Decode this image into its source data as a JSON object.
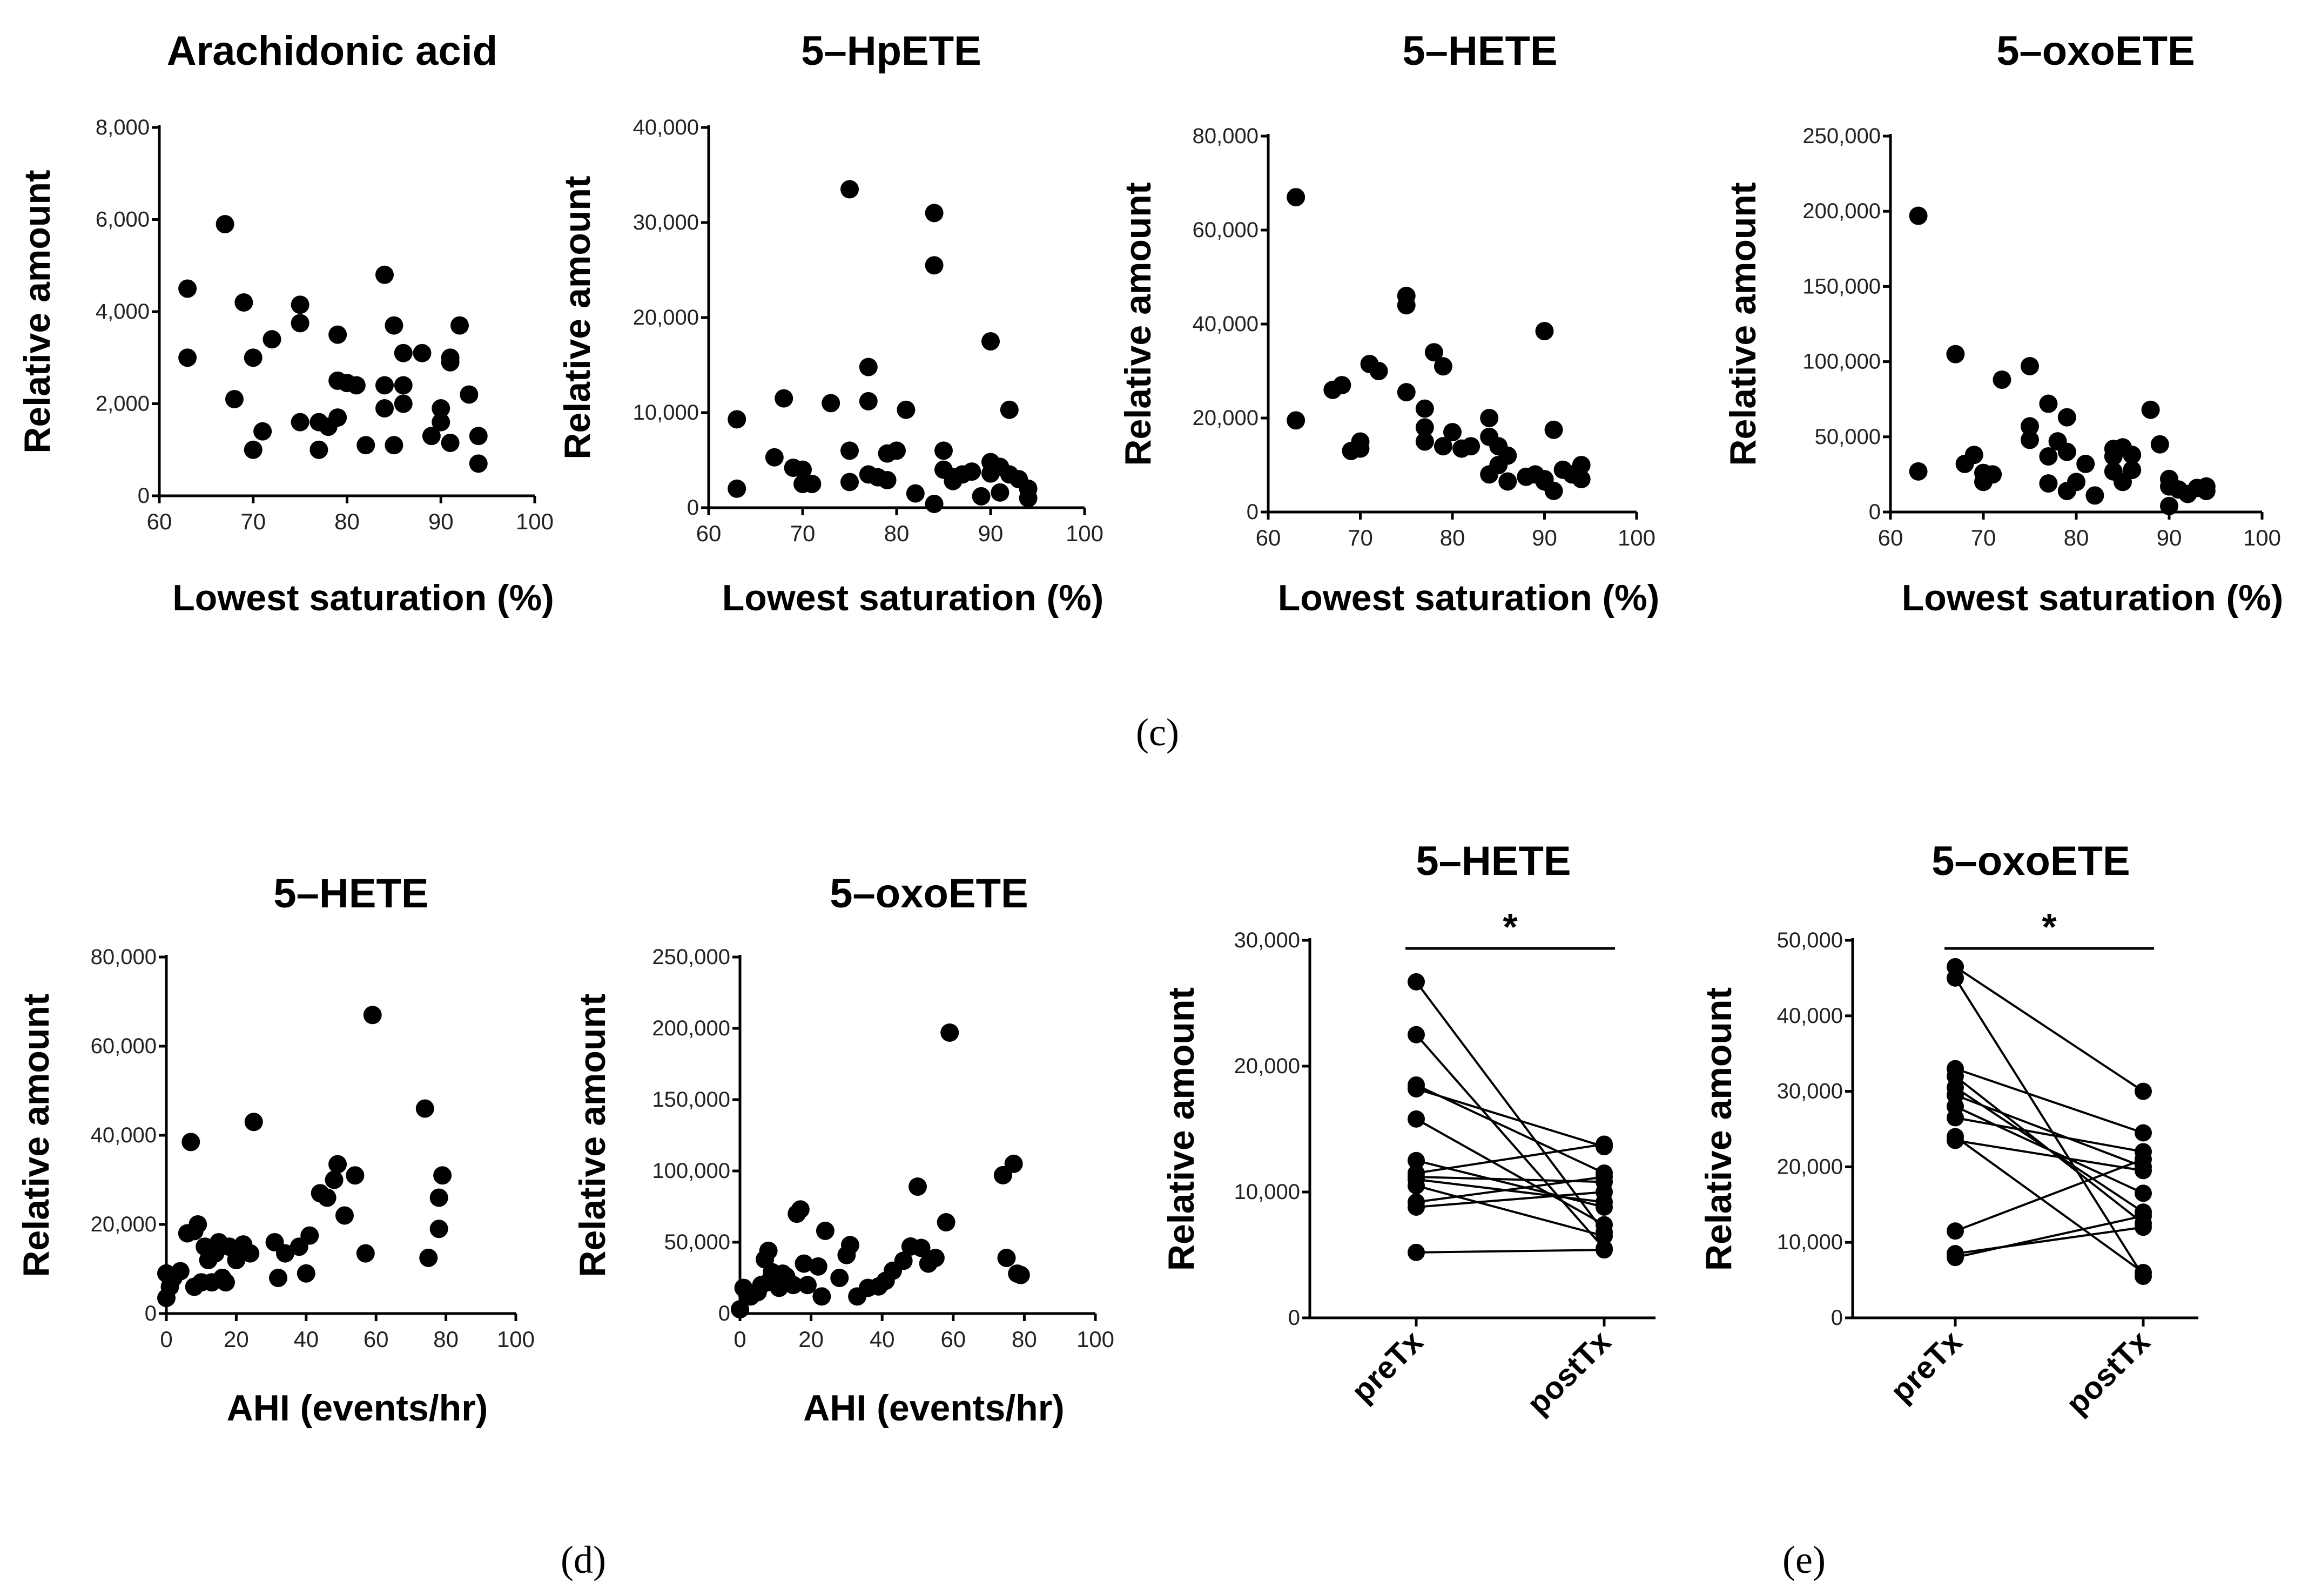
{
  "panel_labels": {
    "c": "(c)",
    "d": "(d)",
    "e": "(e)"
  },
  "significance_marker": "*",
  "colors": {
    "points": "#000000",
    "axes": "#000000",
    "background": "#ffffff"
  },
  "chart_data": [
    {
      "id": "c1",
      "type": "scatter",
      "title": "Arachidonic acid",
      "xlabel": "Lowest saturation (%)",
      "ylabel": "Relative amount",
      "xlim": [
        60,
        100
      ],
      "ylim": [
        0,
        8000
      ],
      "xticks": [
        60,
        70,
        80,
        90,
        100
      ],
      "xtick_labels": [
        "60",
        "70",
        "80",
        "90",
        "100"
      ],
      "yticks": [
        0,
        2000,
        4000,
        6000,
        8000
      ],
      "ytick_labels": [
        "0",
        "2,000",
        "4,000",
        "6,000",
        "8,000"
      ],
      "points": [
        [
          63,
          4500
        ],
        [
          63,
          3000
        ],
        [
          67,
          5900
        ],
        [
          68,
          2100
        ],
        [
          69,
          4200
        ],
        [
          70,
          3000
        ],
        [
          70,
          1000
        ],
        [
          71,
          1400
        ],
        [
          72,
          3400
        ],
        [
          75,
          4150
        ],
        [
          75,
          3750
        ],
        [
          75,
          1600
        ],
        [
          77,
          1600
        ],
        [
          77,
          1000
        ],
        [
          78,
          1500
        ],
        [
          79,
          3500
        ],
        [
          79,
          2500
        ],
        [
          79,
          1700
        ],
        [
          80,
          2450
        ],
        [
          81,
          2400
        ],
        [
          82,
          1100
        ],
        [
          84,
          4800
        ],
        [
          84,
          2400
        ],
        [
          84,
          1900
        ],
        [
          85,
          3700
        ],
        [
          85,
          1100
        ],
        [
          86,
          2400
        ],
        [
          86,
          2000
        ],
        [
          86,
          3100
        ],
        [
          88,
          3100
        ],
        [
          89,
          1300
        ],
        [
          90,
          1900
        ],
        [
          90,
          1600
        ],
        [
          91,
          3000
        ],
        [
          91,
          2900
        ],
        [
          91,
          1150
        ],
        [
          92,
          3700
        ],
        [
          93,
          2200
        ],
        [
          94,
          1300
        ],
        [
          94,
          700
        ]
      ]
    },
    {
      "id": "c2",
      "type": "scatter",
      "title": "5–HpETE",
      "xlabel": "Lowest saturation (%)",
      "ylabel": "Relative amount",
      "xlim": [
        60,
        100
      ],
      "ylim": [
        0,
        40000
      ],
      "xticks": [
        60,
        70,
        80,
        90,
        100
      ],
      "xtick_labels": [
        "60",
        "70",
        "80",
        "90",
        "100"
      ],
      "yticks": [
        0,
        10000,
        20000,
        30000,
        40000
      ],
      "ytick_labels": [
        "0",
        "10,000",
        "20,000",
        "30,000",
        "40,000"
      ],
      "points": [
        [
          63,
          9300
        ],
        [
          63,
          2000
        ],
        [
          67,
          5300
        ],
        [
          68,
          11500
        ],
        [
          69,
          4200
        ],
        [
          70,
          4000
        ],
        [
          70,
          2500
        ],
        [
          71,
          2500
        ],
        [
          73,
          11000
        ],
        [
          75,
          33500
        ],
        [
          75,
          6000
        ],
        [
          75,
          2700
        ],
        [
          77,
          14800
        ],
        [
          77,
          11200
        ],
        [
          77,
          3500
        ],
        [
          78,
          3200
        ],
        [
          79,
          5700
        ],
        [
          79,
          2900
        ],
        [
          80,
          6000
        ],
        [
          81,
          10300
        ],
        [
          82,
          1500
        ],
        [
          84,
          31000
        ],
        [
          84,
          25500
        ],
        [
          84,
          400
        ],
        [
          85,
          6000
        ],
        [
          85,
          4000
        ],
        [
          86,
          2800
        ],
        [
          86,
          3200
        ],
        [
          87,
          3500
        ],
        [
          88,
          3800
        ],
        [
          89,
          1200
        ],
        [
          90,
          17500
        ],
        [
          90,
          4800
        ],
        [
          90,
          3600
        ],
        [
          91,
          4300
        ],
        [
          91,
          1600
        ],
        [
          92,
          10300
        ],
        [
          92,
          3500
        ],
        [
          93,
          3000
        ],
        [
          94,
          2000
        ],
        [
          94,
          1000
        ]
      ]
    },
    {
      "id": "c3",
      "type": "scatter",
      "title": "5–HETE",
      "xlabel": "Lowest saturation (%)",
      "ylabel": "Relative amount",
      "xlim": [
        60,
        100
      ],
      "ylim": [
        0,
        80000
      ],
      "xticks": [
        60,
        70,
        80,
        90,
        100
      ],
      "xtick_labels": [
        "60",
        "70",
        "80",
        "90",
        "100"
      ],
      "yticks": [
        0,
        20000,
        40000,
        60000,
        80000
      ],
      "ytick_labels": [
        "0",
        "20,000",
        "40,000",
        "60,000",
        "80,000"
      ],
      "points": [
        [
          63,
          67000
        ],
        [
          63,
          19500
        ],
        [
          67,
          26000
        ],
        [
          68,
          27000
        ],
        [
          69,
          13000
        ],
        [
          70,
          15000
        ],
        [
          70,
          13500
        ],
        [
          71,
          31500
        ],
        [
          72,
          30000
        ],
        [
          75,
          46000
        ],
        [
          75,
          44000
        ],
        [
          75,
          25500
        ],
        [
          77,
          22000
        ],
        [
          77,
          18000
        ],
        [
          77,
          15000
        ],
        [
          78,
          34000
        ],
        [
          79,
          31000
        ],
        [
          79,
          14000
        ],
        [
          80,
          17000
        ],
        [
          81,
          13500
        ],
        [
          82,
          14000
        ],
        [
          84,
          20000
        ],
        [
          84,
          16000
        ],
        [
          84,
          8000
        ],
        [
          85,
          14000
        ],
        [
          85,
          10000
        ],
        [
          86,
          12000
        ],
        [
          86,
          6500
        ],
        [
          88,
          7500
        ],
        [
          89,
          8000
        ],
        [
          90,
          38500
        ],
        [
          90,
          7000
        ],
        [
          90,
          6500
        ],
        [
          91,
          17500
        ],
        [
          91,
          4500
        ],
        [
          92,
          9000
        ],
        [
          93,
          8000
        ],
        [
          94,
          7000
        ],
        [
          94,
          10000
        ]
      ]
    },
    {
      "id": "c4",
      "type": "scatter",
      "title": "5–oxoETE",
      "xlabel": "Lowest saturation (%)",
      "ylabel": "Relative amount",
      "xlim": [
        60,
        100
      ],
      "ylim": [
        0,
        250000
      ],
      "xticks": [
        60,
        70,
        80,
        90,
        100
      ],
      "xtick_labels": [
        "60",
        "70",
        "80",
        "90",
        "100"
      ],
      "yticks": [
        0,
        50000,
        100000,
        150000,
        200000,
        250000
      ],
      "ytick_labels": [
        "0",
        "50,000",
        "100,000",
        "150,000",
        "200,000",
        "250,000"
      ],
      "points": [
        [
          63,
          197000
        ],
        [
          63,
          27000
        ],
        [
          67,
          105000
        ],
        [
          68,
          32000
        ],
        [
          69,
          38000
        ],
        [
          70,
          20000
        ],
        [
          70,
          26000
        ],
        [
          71,
          25000
        ],
        [
          72,
          88000
        ],
        [
          75,
          97000
        ],
        [
          75,
          57000
        ],
        [
          75,
          48000
        ],
        [
          77,
          72000
        ],
        [
          77,
          37000
        ],
        [
          77,
          19000
        ],
        [
          78,
          47000
        ],
        [
          79,
          63000
        ],
        [
          79,
          40000
        ],
        [
          79,
          14000
        ],
        [
          80,
          20000
        ],
        [
          81,
          32000
        ],
        [
          82,
          11000
        ],
        [
          84,
          42000
        ],
        [
          84,
          37000
        ],
        [
          84,
          27000
        ],
        [
          85,
          20000
        ],
        [
          85,
          43000
        ],
        [
          86,
          28000
        ],
        [
          86,
          38000
        ],
        [
          88,
          68000
        ],
        [
          89,
          45000
        ],
        [
          90,
          22000
        ],
        [
          90,
          17000
        ],
        [
          90,
          4000
        ],
        [
          91,
          15000
        ],
        [
          92,
          12000
        ],
        [
          93,
          16000
        ],
        [
          94,
          14000
        ],
        [
          94,
          17000
        ]
      ]
    },
    {
      "id": "d1",
      "type": "scatter",
      "title": "5–HETE",
      "xlabel": "AHI (events/hr)",
      "ylabel": "Relative amount",
      "xlim": [
        0,
        100
      ],
      "ylim": [
        0,
        80000
      ],
      "xticks": [
        0,
        20,
        40,
        60,
        80,
        100
      ],
      "xtick_labels": [
        "0",
        "20",
        "40",
        "60",
        "80",
        "100"
      ],
      "yticks": [
        0,
        20000,
        40000,
        60000,
        80000
      ],
      "ytick_labels": [
        "0",
        "20,000",
        "40,000",
        "60,000",
        "80,000"
      ],
      "points": [
        [
          0,
          9000
        ],
        [
          0,
          3500
        ],
        [
          1,
          6000
        ],
        [
          2,
          8000
        ],
        [
          4,
          9500
        ],
        [
          6,
          18000
        ],
        [
          7,
          38500
        ],
        [
          8,
          6000
        ],
        [
          8,
          18500
        ],
        [
          9,
          20000
        ],
        [
          10,
          7000
        ],
        [
          11,
          15000
        ],
        [
          12,
          12000
        ],
        [
          13,
          7000
        ],
        [
          14,
          13500
        ],
        [
          15,
          16000
        ],
        [
          16,
          8000
        ],
        [
          17,
          7000
        ],
        [
          18,
          15000
        ],
        [
          20,
          12000
        ],
        [
          22,
          15500
        ],
        [
          24,
          13500
        ],
        [
          25,
          43000
        ],
        [
          31,
          16000
        ],
        [
          32,
          8000
        ],
        [
          34,
          13500
        ],
        [
          38,
          15000
        ],
        [
          40,
          9000
        ],
        [
          41,
          17500
        ],
        [
          44,
          27000
        ],
        [
          46,
          26000
        ],
        [
          48,
          30000
        ],
        [
          49,
          33500
        ],
        [
          51,
          22000
        ],
        [
          54,
          31000
        ],
        [
          57,
          13500
        ],
        [
          59,
          67000
        ],
        [
          74,
          46000
        ],
        [
          75,
          12500
        ],
        [
          78,
          26000
        ],
        [
          79,
          31000
        ],
        [
          78,
          19000
        ]
      ]
    },
    {
      "id": "d2",
      "type": "scatter",
      "title": "5–oxoETE",
      "xlabel": "AHI (events/hr)",
      "ylabel": "Relative amount",
      "xlim": [
        0,
        100
      ],
      "ylim": [
        0,
        250000
      ],
      "xticks": [
        0,
        20,
        40,
        60,
        80,
        100
      ],
      "xtick_labels": [
        "0",
        "20",
        "40",
        "60",
        "80",
        "100"
      ],
      "yticks": [
        0,
        50000,
        100000,
        150000,
        200000,
        250000
      ],
      "ytick_labels": [
        "0",
        "50,000",
        "100,000",
        "150,000",
        "200,000",
        "250,000"
      ],
      "points": [
        [
          0,
          3000
        ],
        [
          1,
          18000
        ],
        [
          2,
          14000
        ],
        [
          3,
          12000
        ],
        [
          5,
          15000
        ],
        [
          6,
          20000
        ],
        [
          7,
          38000
        ],
        [
          8,
          22000
        ],
        [
          8,
          44000
        ],
        [
          9,
          29000
        ],
        [
          10,
          24000
        ],
        [
          11,
          18000
        ],
        [
          12,
          28000
        ],
        [
          13,
          26000
        ],
        [
          15,
          20000
        ],
        [
          16,
          70000
        ],
        [
          17,
          73000
        ],
        [
          18,
          35000
        ],
        [
          19,
          20000
        ],
        [
          22,
          33000
        ],
        [
          23,
          12000
        ],
        [
          24,
          58000
        ],
        [
          28,
          25000
        ],
        [
          30,
          41000
        ],
        [
          31,
          48000
        ],
        [
          33,
          12000
        ],
        [
          36,
          18000
        ],
        [
          39,
          19000
        ],
        [
          41,
          23000
        ],
        [
          43,
          30000
        ],
        [
          46,
          37000
        ],
        [
          48,
          47000
        ],
        [
          50,
          89000
        ],
        [
          51,
          46000
        ],
        [
          53,
          35000
        ],
        [
          55,
          39000
        ],
        [
          58,
          64000
        ],
        [
          59,
          197000
        ],
        [
          74,
          97000
        ],
        [
          75,
          39000
        ],
        [
          77,
          105000
        ],
        [
          78,
          28000
        ],
        [
          79,
          27000
        ]
      ]
    },
    {
      "id": "e1",
      "type": "paired",
      "title": "5–HETE",
      "xlabel": "",
      "ylabel": "Relative amount",
      "categories": [
        "preTx",
        "postTx"
      ],
      "ylim": [
        0,
        30000
      ],
      "yticks": [
        0,
        10000,
        20000,
        30000
      ],
      "ytick_labels": [
        "0",
        "10,000",
        "20,000",
        "30,000"
      ],
      "pairs": [
        [
          26700,
          6800
        ],
        [
          22500,
          5500
        ],
        [
          18500,
          11500
        ],
        [
          18200,
          13600
        ],
        [
          15800,
          7400
        ],
        [
          12500,
          8800
        ],
        [
          11500,
          13800
        ],
        [
          11200,
          10800
        ],
        [
          11000,
          9200
        ],
        [
          10500,
          6500
        ],
        [
          9200,
          11200
        ],
        [
          8800,
          10000
        ],
        [
          5200,
          5400
        ]
      ],
      "significance": "*"
    },
    {
      "id": "e2",
      "type": "paired",
      "title": "5–oxoETE",
      "xlabel": "",
      "ylabel": "Relative amount",
      "categories": [
        "preTx",
        "postTx"
      ],
      "ylim": [
        0,
        50000
      ],
      "yticks": [
        0,
        10000,
        20000,
        30000,
        40000,
        50000
      ],
      "ytick_labels": [
        "0",
        "10,000",
        "20,000",
        "30,000",
        "40,000",
        "50,000"
      ],
      "pairs": [
        [
          46500,
          30000
        ],
        [
          45000,
          5500
        ],
        [
          33000,
          24500
        ],
        [
          32000,
          12500
        ],
        [
          30500,
          14000
        ],
        [
          29500,
          20000
        ],
        [
          28000,
          16500
        ],
        [
          26500,
          22000
        ],
        [
          24000,
          6000
        ],
        [
          23500,
          19500
        ],
        [
          11500,
          21000
        ],
        [
          8500,
          12000
        ],
        [
          8000,
          13500
        ]
      ],
      "significance": "*"
    }
  ]
}
